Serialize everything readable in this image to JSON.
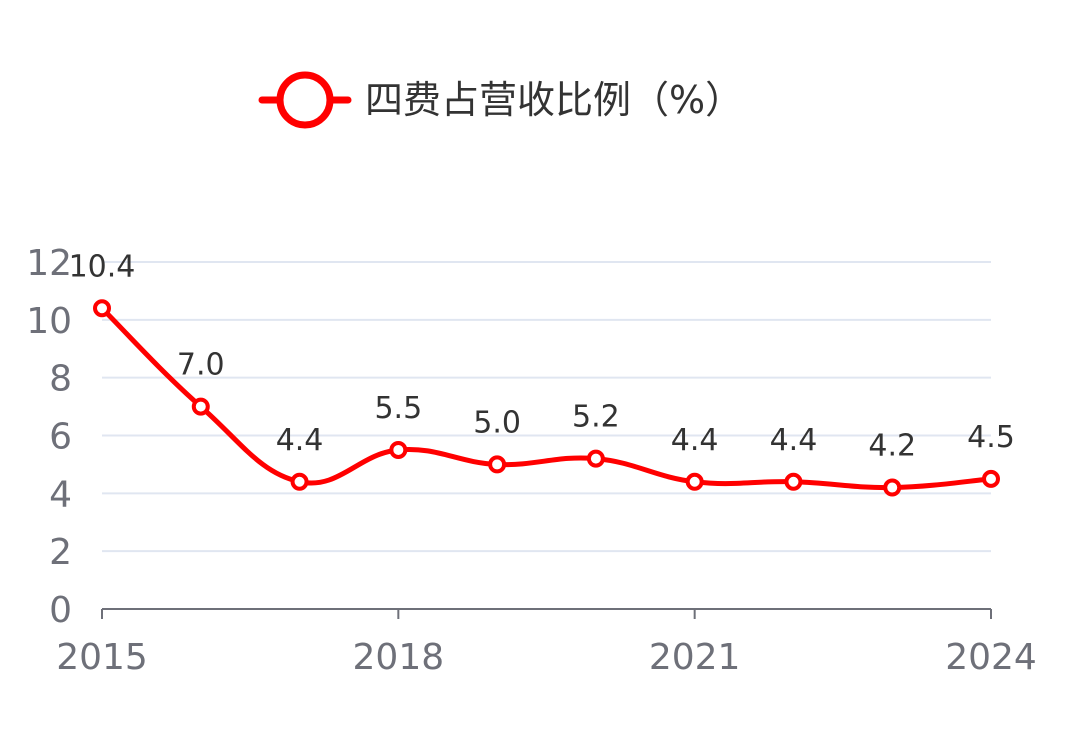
{
  "chart_data": {
    "type": "line",
    "title": "",
    "xlabel": "",
    "ylabel": "",
    "x": [
      2015,
      2016,
      2017,
      2018,
      2019,
      2020,
      2021,
      2022,
      2023,
      2024
    ],
    "x_tick_labels": [
      "2015",
      "2018",
      "2021",
      "2024"
    ],
    "x_tick_values": [
      2015,
      2018,
      2021,
      2024
    ],
    "ylim": [
      0,
      12
    ],
    "y_ticks": [
      0,
      2,
      4,
      6,
      8,
      10,
      12
    ],
    "y_tick_labels": [
      "0",
      "2",
      "4",
      "6",
      "8",
      "10",
      "12"
    ],
    "grid": true,
    "legend_position": "top-center",
    "series": [
      {
        "name": "四费占营收比例（%）",
        "color": "#ff0000",
        "smooth": true,
        "marker": "hollow-circle",
        "values": [
          10.4,
          7.0,
          4.4,
          5.5,
          5.0,
          5.2,
          4.4,
          4.4,
          4.2,
          4.5
        ],
        "labels": [
          "10.4",
          "7.0",
          "4.4",
          "5.5",
          "5.0",
          "5.2",
          "4.4",
          "4.4",
          "4.2",
          "4.5"
        ]
      }
    ]
  }
}
